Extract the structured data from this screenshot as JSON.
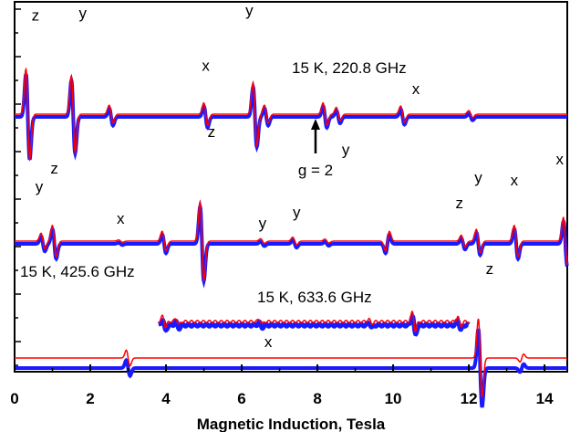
{
  "chart_data": {
    "type": "line",
    "xlabel": "Magnetic Induction, Tesla",
    "ylabel": "",
    "xlim": [
      0,
      14.6
    ],
    "x_ticks": [
      0,
      2,
      4,
      6,
      8,
      10,
      12,
      14
    ],
    "grid": false,
    "series_colors": {
      "blue": "#1a1aff",
      "red": "#ff0000"
    },
    "panels": [
      {
        "label": "15 K, 220.8 GHz",
        "features": [
          {
            "x": 0.35,
            "amp": 1.0
          },
          {
            "x": 1.55,
            "amp": 0.85
          },
          {
            "x": 2.55,
            "amp": 0.2
          },
          {
            "x": 5.05,
            "amp": 0.25
          },
          {
            "x": 6.35,
            "amp": 0.7
          },
          {
            "x": 6.65,
            "amp": 0.2
          },
          {
            "x": 8.2,
            "amp": 0.25
          },
          {
            "x": 8.55,
            "amp": 0.15
          },
          {
            "x": 10.25,
            "amp": 0.18
          },
          {
            "x": 12.05,
            "amp": 0.08
          }
        ],
        "peak_labels": [
          {
            "text": "z",
            "x": 0.55,
            "y": 0.9
          },
          {
            "text": "y",
            "x": 1.8,
            "y": 0.92
          },
          {
            "text": "y",
            "x": 6.2,
            "y": 0.95
          },
          {
            "text": "x",
            "x": 5.05,
            "y": 0.42
          },
          {
            "text": "y",
            "x": 8.75,
            "y": -0.38
          },
          {
            "text": "x",
            "x": 10.6,
            "y": 0.2
          }
        ],
        "annotation": {
          "text": "g = 2",
          "x": 7.95
        }
      },
      {
        "label": "15 K, 425.6 GHz",
        "features": [
          {
            "x": 0.75,
            "amp": 0.2
          },
          {
            "x": 1.05,
            "amp": 0.4
          },
          {
            "x": 2.8,
            "amp": 0.03
          },
          {
            "x": 3.95,
            "amp": 0.25
          },
          {
            "x": 4.95,
            "amp": 1.0
          },
          {
            "x": 6.55,
            "amp": 0.06
          },
          {
            "x": 7.4,
            "amp": 0.1
          },
          {
            "x": 8.25,
            "amp": 0.05
          },
          {
            "x": 9.85,
            "amp": -0.25
          },
          {
            "x": 11.85,
            "amp": 0.15
          },
          {
            "x": 12.25,
            "amp": 0.3
          },
          {
            "x": 13.25,
            "amp": 0.4
          },
          {
            "x": 14.55,
            "amp": 0.6
          }
        ],
        "peak_labels": [
          {
            "text": "y",
            "x": 0.65,
            "y": 0.55
          },
          {
            "text": "z",
            "x": 1.05,
            "y": 0.75
          },
          {
            "text": "x",
            "x": 2.8,
            "y": 0.2
          },
          {
            "text": "z",
            "x": 5.2,
            "y": 1.15
          },
          {
            "text": "y",
            "x": 6.55,
            "y": 0.15
          },
          {
            "text": "y",
            "x": 7.45,
            "y": 0.27
          },
          {
            "text": "z",
            "x": 11.75,
            "y": 0.37
          },
          {
            "text": "y",
            "x": 12.25,
            "y": 0.65
          },
          {
            "text": "x",
            "x": 13.2,
            "y": 0.62
          },
          {
            "text": "x",
            "x": 14.4,
            "y": 0.85
          }
        ]
      },
      {
        "label": "15 K, 633.6 GHz",
        "features": [
          {
            "x": 3.0,
            "amp": 0.2
          },
          {
            "x": 12.3,
            "amp": 1.0
          },
          {
            "x": 13.4,
            "amp": -0.1
          }
        ],
        "peak_labels": [
          {
            "text": "x",
            "x": 6.7,
            "y": 0.15
          },
          {
            "text": "z",
            "x": 12.55,
            "y": 0.95
          }
        ],
        "inset_range": [
          3.8,
          12.0
        ]
      }
    ]
  }
}
